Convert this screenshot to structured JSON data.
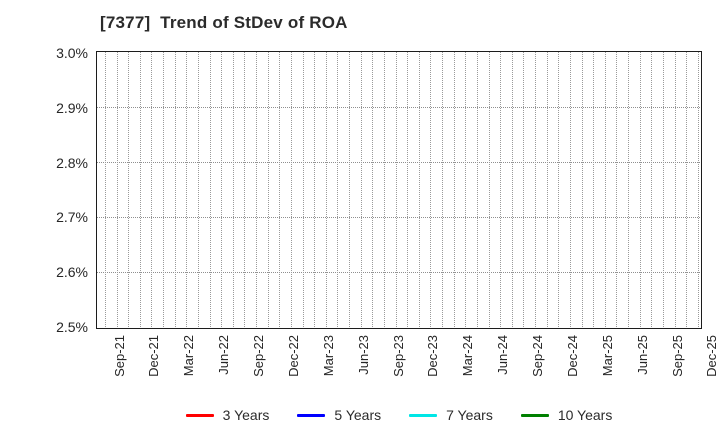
{
  "title": "[7377]  Trend of StDev of ROA",
  "chart_data": {
    "type": "line",
    "title": "[7377]  Trend of StDev of ROA",
    "xlabel": "",
    "ylabel": "",
    "ylim": [
      2.5,
      3.0
    ],
    "yticks": [
      {
        "label": "3.0%",
        "value": 3.0
      },
      {
        "label": "2.9%",
        "value": 2.9
      },
      {
        "label": "2.8%",
        "value": 2.8
      },
      {
        "label": "2.7%",
        "value": 2.7
      },
      {
        "label": "2.6%",
        "value": 2.6
      },
      {
        "label": "2.5%",
        "value": 2.5
      }
    ],
    "x_tick_labels": [
      "Sep-21",
      "Dec-21",
      "Mar-22",
      "Jun-22",
      "Sep-22",
      "Dec-22",
      "Mar-23",
      "Jun-23",
      "Sep-23",
      "Dec-23",
      "Mar-24",
      "Jun-24",
      "Sep-24",
      "Dec-24",
      "Mar-25",
      "Jun-25",
      "Sep-25",
      "Dec-25"
    ],
    "months_per_x_tick": 3,
    "n_month_gridlines": 52,
    "grid": true,
    "gridline_style": "dotted",
    "legend_position": "bottom",
    "series": [
      {
        "name": "3 Years",
        "color": "#ff0000",
        "values": []
      },
      {
        "name": "5 Years",
        "color": "#0000ff",
        "values": []
      },
      {
        "name": "7 Years",
        "color": "#00e6e6",
        "values": []
      },
      {
        "name": "10 Years",
        "color": "#008000",
        "values": []
      }
    ]
  }
}
